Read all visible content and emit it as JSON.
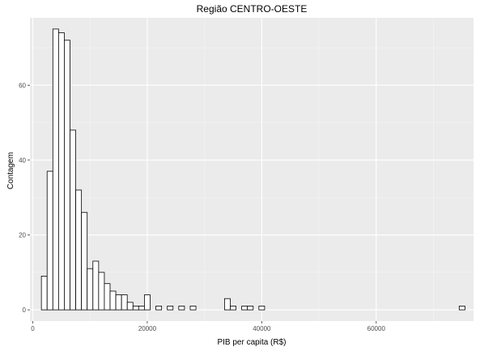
{
  "chart_data": {
    "type": "bar",
    "title": "Região  CENTRO-OESTE",
    "xlabel": "PIB per capita (R$)",
    "ylabel": "Contagem",
    "xlim": [
      -500,
      77000
    ],
    "ylim": [
      -3,
      78
    ],
    "x_ticks": [
      0,
      20000,
      40000,
      60000
    ],
    "x_tick_labels": [
      "0",
      "20000",
      "40000",
      "60000"
    ],
    "y_ticks": [
      0,
      20,
      40,
      60
    ],
    "y_tick_labels": [
      "0",
      "20",
      "40",
      "60"
    ],
    "grid": true,
    "legend": "none",
    "bin_width": 1000,
    "bin_start": 1500,
    "counts": [
      9,
      37,
      75,
      74,
      72,
      48,
      32,
      26,
      11,
      13,
      10,
      7,
      5,
      4,
      4,
      2,
      1,
      1,
      4,
      0,
      1,
      0,
      1,
      0,
      1,
      0,
      1,
      0,
      0,
      0,
      0,
      0,
      3,
      1,
      0,
      1,
      1,
      0,
      1,
      0,
      0,
      0,
      0,
      0,
      0,
      0,
      0,
      0,
      0,
      0,
      0,
      0,
      0,
      0,
      0,
      0,
      0,
      0,
      0,
      0,
      0,
      0,
      0,
      0,
      0,
      0,
      0,
      0,
      0,
      0,
      0,
      0,
      0,
      1
    ],
    "colors": {
      "panel": "#ebebeb",
      "grid_major": "#ffffff",
      "grid_minor": "#f5f5f5",
      "bar_fill": "#ffffff",
      "bar_stroke": "#000000",
      "tick": "#333333"
    }
  }
}
